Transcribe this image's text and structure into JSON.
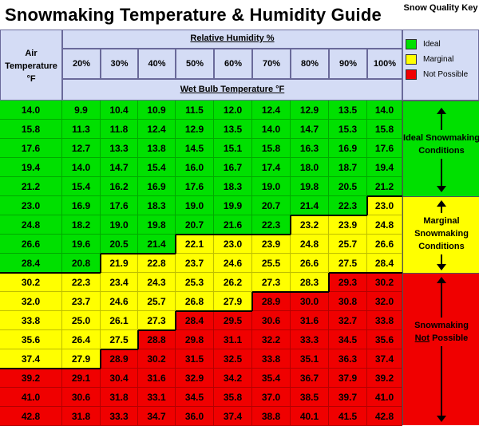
{
  "title": "Snowmaking Temperature & Humidity Guide",
  "key": {
    "heading": "Snow Quality Key",
    "items": [
      {
        "label": "Ideal",
        "color": "#00e000"
      },
      {
        "label": "Marginal",
        "color": "#ffff00"
      },
      {
        "label": "Not Possible",
        "color": "#f00000"
      }
    ]
  },
  "header": {
    "air_temp_label": "Air Temperature °F",
    "rh_label": "Relative Humidity %",
    "wb_label": "Wet Bulb Temperature °F",
    "humidity_columns": [
      "20%",
      "30%",
      "40%",
      "50%",
      "60%",
      "70%",
      "80%",
      "90%",
      "100%"
    ]
  },
  "conditions": {
    "ideal": "Ideal Snowmaking Conditions",
    "marginal": "Marginal Snowmaking Conditions",
    "not_possible_prefix": "Snowmaking",
    "not_possible_underlined": "Not",
    "not_possible_suffix": "Possible"
  },
  "table": {
    "rows": [
      {
        "air": "14.0",
        "wb": [
          "9.9",
          "10.4",
          "10.9",
          "11.5",
          "12.0",
          "12.4",
          "12.9",
          "13.5",
          "14.0"
        ],
        "q": "GGGGGGGGGG"
      },
      {
        "air": "15.8",
        "wb": [
          "11.3",
          "11.8",
          "12.4",
          "12.9",
          "13.5",
          "14.0",
          "14.7",
          "15.3",
          "15.8"
        ],
        "q": "GGGGGGGGGG"
      },
      {
        "air": "17.6",
        "wb": [
          "12.7",
          "13.3",
          "13.8",
          "14.5",
          "15.1",
          "15.8",
          "16.3",
          "16.9",
          "17.6"
        ],
        "q": "GGGGGGGGGG"
      },
      {
        "air": "19.4",
        "wb": [
          "14.0",
          "14.7",
          "15.4",
          "16.0",
          "16.7",
          "17.4",
          "18.0",
          "18.7",
          "19.4"
        ],
        "q": "GGGGGGGGGG"
      },
      {
        "air": "21.2",
        "wb": [
          "15.4",
          "16.2",
          "16.9",
          "17.6",
          "18.3",
          "19.0",
          "19.8",
          "20.5",
          "21.2"
        ],
        "q": "GGGGGGGGGG"
      },
      {
        "air": "23.0",
        "wb": [
          "16.9",
          "17.6",
          "18.3",
          "19.0",
          "19.9",
          "20.7",
          "21.4",
          "22.3",
          "23.0"
        ],
        "q": "GGGGGGGGGY"
      },
      {
        "air": "24.8",
        "wb": [
          "18.2",
          "19.0",
          "19.8",
          "20.7",
          "21.6",
          "22.3",
          "23.2",
          "23.9",
          "24.8"
        ],
        "q": "GGGGGGGYYY"
      },
      {
        "air": "26.6",
        "wb": [
          "19.6",
          "20.5",
          "21.4",
          "22.1",
          "23.0",
          "23.9",
          "24.8",
          "25.7",
          "26.6"
        ],
        "q": "GGGGYYYYYY"
      },
      {
        "air": "28.4",
        "wb": [
          "20.8",
          "21.9",
          "22.8",
          "23.7",
          "24.6",
          "25.5",
          "26.6",
          "27.5",
          "28.4"
        ],
        "q": "GGYYYYYYYY"
      },
      {
        "air": "30.2",
        "wb": [
          "22.3",
          "23.4",
          "24.3",
          "25.3",
          "26.2",
          "27.3",
          "28.3",
          "29.3",
          "30.2"
        ],
        "q": "YYYYYYYYRR"
      },
      {
        "air": "32.0",
        "wb": [
          "23.7",
          "24.6",
          "25.7",
          "26.8",
          "27.9",
          "28.9",
          "30.0",
          "30.8",
          "32.0"
        ],
        "q": "YYYYYYRRRR"
      },
      {
        "air": "33.8",
        "wb": [
          "25.0",
          "26.1",
          "27.3",
          "28.4",
          "29.5",
          "30.6",
          "31.6",
          "32.7",
          "33.8"
        ],
        "q": "YYYYRRRRRR"
      },
      {
        "air": "35.6",
        "wb": [
          "26.4",
          "27.5",
          "28.8",
          "29.8",
          "31.1",
          "32.2",
          "33.3",
          "34.5",
          "35.6"
        ],
        "q": "YYYRRRRRRR"
      },
      {
        "air": "37.4",
        "wb": [
          "27.9",
          "28.9",
          "30.2",
          "31.5",
          "32.5",
          "33.8",
          "35.1",
          "36.3",
          "37.4"
        ],
        "q": "YYRRRRRRRR"
      },
      {
        "air": "39.2",
        "wb": [
          "29.1",
          "30.4",
          "31.6",
          "32.9",
          "34.2",
          "35.4",
          "36.7",
          "37.9",
          "39.2"
        ],
        "q": "RRRRRRRRRR"
      },
      {
        "air": "41.0",
        "wb": [
          "30.6",
          "31.8",
          "33.1",
          "34.5",
          "35.8",
          "37.0",
          "38.5",
          "39.7",
          "41.0"
        ],
        "q": "RRRRRRRRRR"
      },
      {
        "air": "42.8",
        "wb": [
          "31.8",
          "33.3",
          "34.7",
          "36.0",
          "37.4",
          "38.8",
          "40.1",
          "41.5",
          "42.8"
        ],
        "q": "RRRRRRRRRR"
      }
    ]
  }
}
